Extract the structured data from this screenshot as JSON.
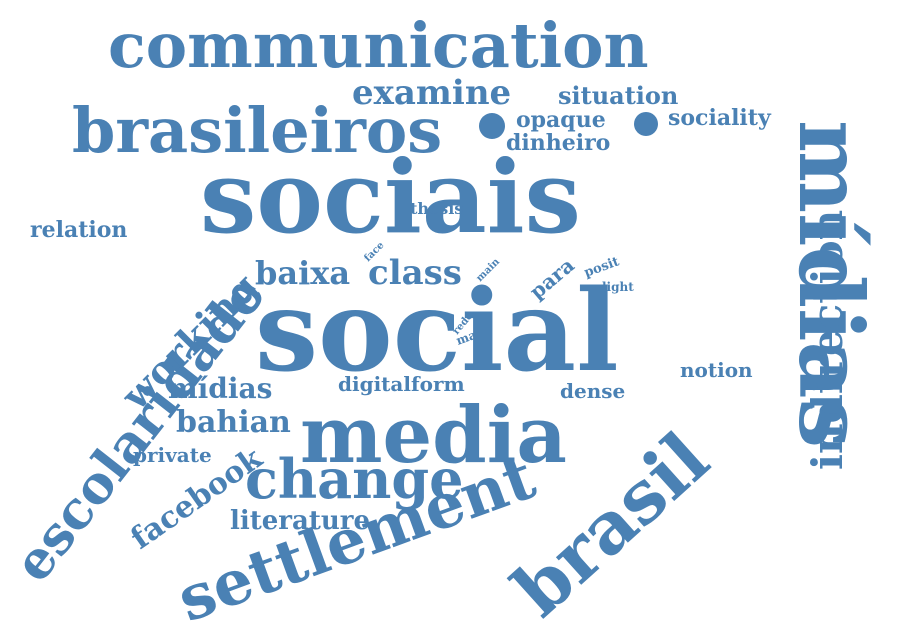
{
  "color": "#4a81b4",
  "words": [
    {
      "id": "communication",
      "text": "communication"
    },
    {
      "id": "brasileiros",
      "text": "brasileiros"
    },
    {
      "id": "examine",
      "text": "examine"
    },
    {
      "id": "situation",
      "text": "situation"
    },
    {
      "id": "opaque",
      "text": "opaque"
    },
    {
      "id": "sociality",
      "text": "sociality"
    },
    {
      "id": "dinheiro",
      "text": "dinheiro"
    },
    {
      "id": "sociais",
      "text": "sociais"
    },
    {
      "id": "midias-vertical",
      "text": "mídias"
    },
    {
      "id": "indirection",
      "text": "indirection"
    },
    {
      "id": "escolaridade",
      "text": "escolaridade"
    },
    {
      "id": "relation",
      "text": "relation"
    },
    {
      "id": "thesis",
      "text": "thesis"
    },
    {
      "id": "face",
      "text": "face"
    },
    {
      "id": "main",
      "text": "main"
    },
    {
      "id": "baixa",
      "text": "baixa"
    },
    {
      "id": "class",
      "text": "class"
    },
    {
      "id": "para",
      "text": "para"
    },
    {
      "id": "posit",
      "text": "posit"
    },
    {
      "id": "light",
      "text": "light"
    },
    {
      "id": "working",
      "text": "working"
    },
    {
      "id": "rede",
      "text": "rede"
    },
    {
      "id": "mais",
      "text": "mais"
    },
    {
      "id": "social",
      "text": "social"
    },
    {
      "id": "notion",
      "text": "notion"
    },
    {
      "id": "midias-small",
      "text": "mídias"
    },
    {
      "id": "digital",
      "text": "digital"
    },
    {
      "id": "form",
      "text": "form"
    },
    {
      "id": "dense",
      "text": "dense"
    },
    {
      "id": "bahian",
      "text": "bahian"
    },
    {
      "id": "media",
      "text": "media"
    },
    {
      "id": "private",
      "text": "private"
    },
    {
      "id": "brasil",
      "text": "brasil"
    },
    {
      "id": "facebook",
      "text": "facebook"
    },
    {
      "id": "change",
      "text": "change"
    },
    {
      "id": "literature",
      "text": "literature"
    },
    {
      "id": "settlement",
      "text": "settlement"
    }
  ]
}
